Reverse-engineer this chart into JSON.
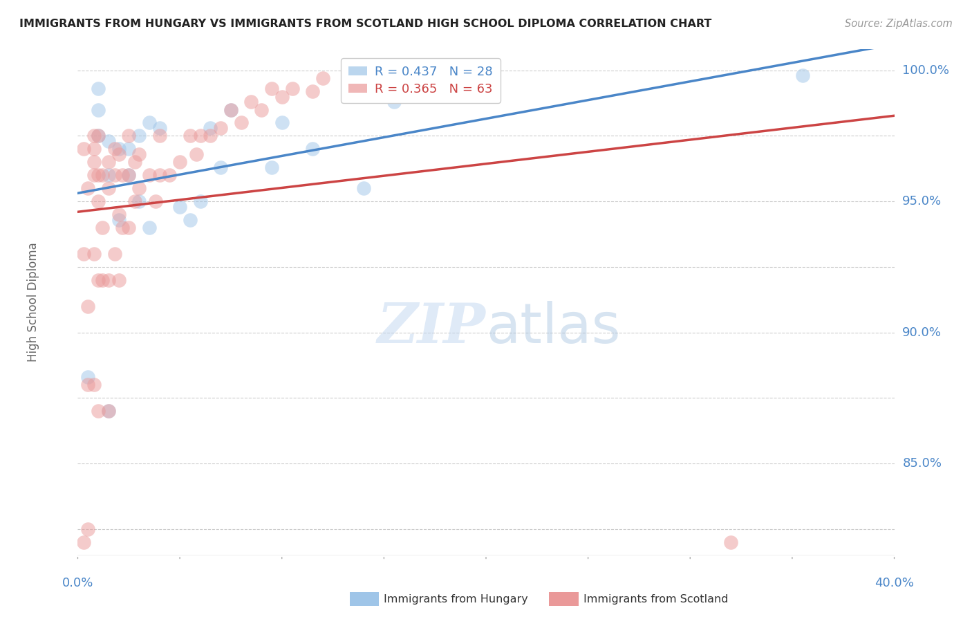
{
  "title": "IMMIGRANTS FROM HUNGARY VS IMMIGRANTS FROM SCOTLAND HIGH SCHOOL DIPLOMA CORRELATION CHART",
  "source": "Source: ZipAtlas.com",
  "ylabel": "High School Diploma",
  "y_tick_values": [
    1.0,
    0.95,
    0.9,
    0.85
  ],
  "xlim": [
    0.0,
    0.4
  ],
  "ylim": [
    0.815,
    1.008
  ],
  "watermark_zip": "ZIP",
  "watermark_atlas": "atlas",
  "legend_hungary": {
    "R": 0.437,
    "N": 28
  },
  "legend_scotland": {
    "R": 0.365,
    "N": 63
  },
  "hungary_color": "#9fc5e8",
  "scotland_color": "#ea9999",
  "hungary_line_color": "#4a86c8",
  "scotland_line_color": "#cc4444",
  "background_color": "#ffffff",
  "grid_color": "#cccccc",
  "axis_label_color": "#4a86c8",
  "title_color": "#222222",
  "source_color": "#999999",
  "ylabel_color": "#666666",
  "hungary_x": [
    0.005,
    0.01,
    0.01,
    0.01,
    0.015,
    0.015,
    0.015,
    0.02,
    0.02,
    0.025,
    0.025,
    0.03,
    0.03,
    0.035,
    0.035,
    0.04,
    0.05,
    0.055,
    0.06,
    0.065,
    0.07,
    0.075,
    0.095,
    0.1,
    0.115,
    0.14,
    0.155,
    0.355
  ],
  "hungary_y": [
    0.883,
    0.975,
    0.985,
    0.993,
    0.87,
    0.96,
    0.973,
    0.943,
    0.97,
    0.96,
    0.97,
    0.95,
    0.975,
    0.94,
    0.98,
    0.978,
    0.948,
    0.943,
    0.95,
    0.978,
    0.963,
    0.985,
    0.963,
    0.98,
    0.97,
    0.955,
    0.988,
    0.998
  ],
  "scotland_x": [
    0.003,
    0.003,
    0.003,
    0.005,
    0.005,
    0.005,
    0.005,
    0.008,
    0.008,
    0.008,
    0.008,
    0.008,
    0.008,
    0.01,
    0.01,
    0.01,
    0.01,
    0.01,
    0.012,
    0.012,
    0.012,
    0.015,
    0.015,
    0.015,
    0.015,
    0.018,
    0.018,
    0.018,
    0.02,
    0.02,
    0.02,
    0.022,
    0.022,
    0.025,
    0.025,
    0.025,
    0.028,
    0.028,
    0.03,
    0.03,
    0.035,
    0.038,
    0.04,
    0.04,
    0.045,
    0.05,
    0.055,
    0.058,
    0.06,
    0.065,
    0.07,
    0.075,
    0.08,
    0.085,
    0.09,
    0.095,
    0.1,
    0.105,
    0.115,
    0.12,
    0.135,
    0.16,
    0.32
  ],
  "scotland_y": [
    0.82,
    0.93,
    0.97,
    0.825,
    0.88,
    0.91,
    0.955,
    0.88,
    0.93,
    0.96,
    0.965,
    0.97,
    0.975,
    0.87,
    0.92,
    0.95,
    0.96,
    0.975,
    0.92,
    0.94,
    0.96,
    0.87,
    0.92,
    0.955,
    0.965,
    0.93,
    0.96,
    0.97,
    0.92,
    0.945,
    0.968,
    0.94,
    0.96,
    0.94,
    0.96,
    0.975,
    0.95,
    0.965,
    0.955,
    0.968,
    0.96,
    0.95,
    0.96,
    0.975,
    0.96,
    0.965,
    0.975,
    0.968,
    0.975,
    0.975,
    0.978,
    0.985,
    0.98,
    0.988,
    0.985,
    0.993,
    0.99,
    0.993,
    0.992,
    0.997,
    0.995,
    0.998,
    0.82
  ]
}
